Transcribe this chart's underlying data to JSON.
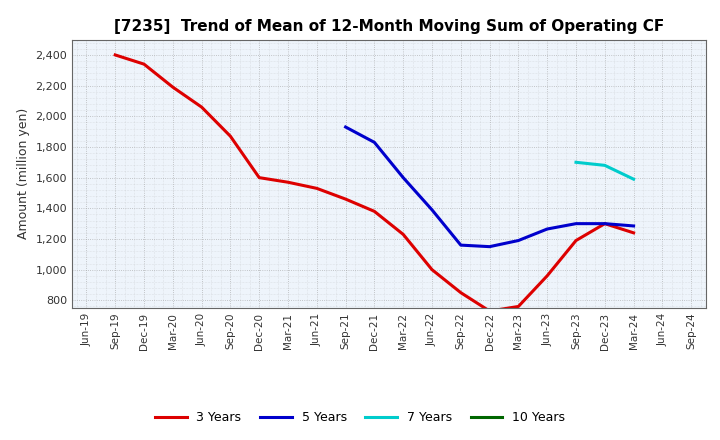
{
  "title": "[7235]  Trend of Mean of 12-Month Moving Sum of Operating CF",
  "ylabel": "Amount (million yen)",
  "background_color": "#ffffff",
  "plot_background": "#eef4fb",
  "grid_color": "#999999",
  "ylim": [
    750,
    2500
  ],
  "yticks": [
    800,
    1000,
    1200,
    1400,
    1600,
    1800,
    2000,
    2200,
    2400
  ],
  "series": {
    "3years": {
      "color": "#dd0000",
      "label": "3 Years",
      "x": [
        "Sep-19",
        "Dec-19",
        "Mar-20",
        "Jun-20",
        "Sep-20",
        "Dec-20",
        "Mar-21",
        "Jun-21",
        "Sep-21",
        "Dec-21",
        "Mar-22",
        "Jun-22",
        "Sep-22",
        "Dec-22",
        "Mar-23",
        "Jun-23",
        "Sep-23",
        "Dec-23",
        "Mar-24"
      ],
      "y": [
        2400,
        2340,
        2190,
        2060,
        1870,
        1600,
        1570,
        1530,
        1460,
        1380,
        1230,
        1000,
        850,
        730,
        760,
        960,
        1190,
        1300,
        1240
      ]
    },
    "5years": {
      "color": "#0000cc",
      "label": "5 Years",
      "x": [
        "Sep-21",
        "Dec-21",
        "Mar-22",
        "Jun-22",
        "Sep-22",
        "Dec-22",
        "Mar-23",
        "Jun-23",
        "Sep-23",
        "Dec-23",
        "Mar-24"
      ],
      "y": [
        1930,
        1830,
        1600,
        1390,
        1160,
        1150,
        1190,
        1265,
        1300,
        1300,
        1285
      ]
    },
    "7years": {
      "color": "#00cccc",
      "label": "7 Years",
      "x": [
        "Sep-23",
        "Dec-23",
        "Mar-24"
      ],
      "y": [
        1700,
        1680,
        1590
      ]
    },
    "10years": {
      "color": "#006600",
      "label": "10 Years",
      "x": [],
      "y": []
    }
  },
  "xtick_labels": [
    "Jun-19",
    "Sep-19",
    "Dec-19",
    "Mar-20",
    "Jun-20",
    "Sep-20",
    "Dec-20",
    "Mar-21",
    "Jun-21",
    "Sep-21",
    "Dec-21",
    "Mar-22",
    "Jun-22",
    "Sep-22",
    "Dec-22",
    "Mar-23",
    "Jun-23",
    "Sep-23",
    "Dec-23",
    "Mar-24",
    "Jun-24",
    "Sep-24"
  ],
  "legend_order": [
    "3years",
    "5years",
    "7years",
    "10years"
  ]
}
